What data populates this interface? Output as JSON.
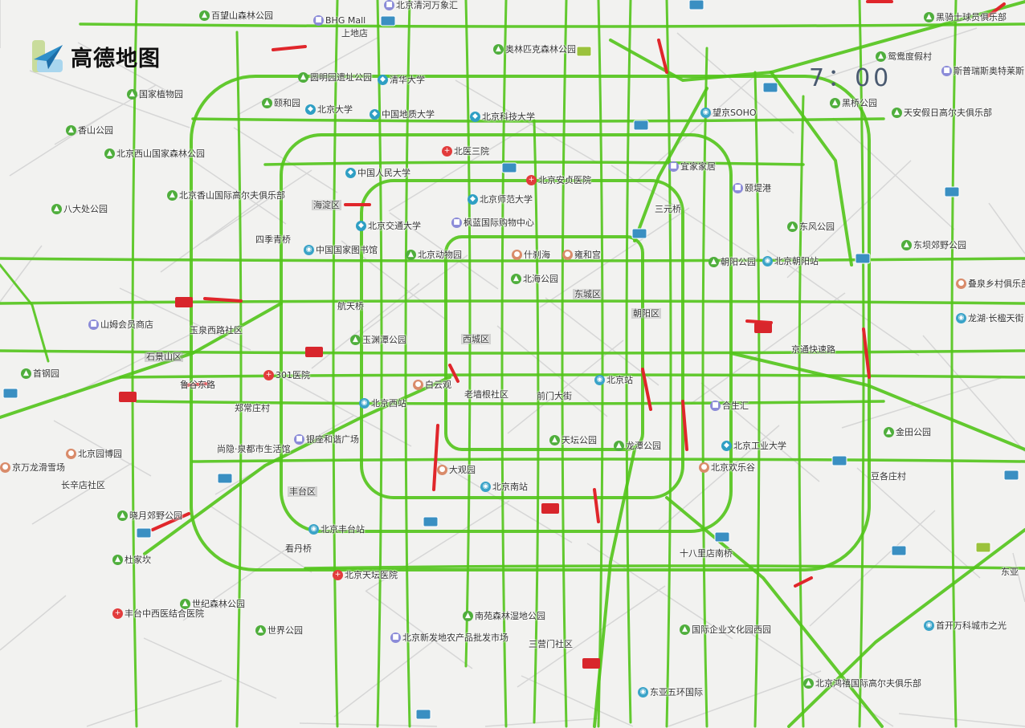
{
  "brand": {
    "name": "高德地图"
  },
  "time": "7：00",
  "colors": {
    "road_free": "#52c41a",
    "road_jam": "#e0262b",
    "background": "#f2f2f0",
    "park": "#4fae3c"
  },
  "labels": [
    {
      "text": "百望山森林公园",
      "icon": "park"
    },
    {
      "text": "BHG Mall",
      "icon": "shop"
    },
    {
      "text": "上地店",
      "icon": "none"
    },
    {
      "text": "北京清河万象汇",
      "icon": "shop"
    },
    {
      "text": "黑骑士球员俱乐部",
      "icon": "park"
    },
    {
      "text": "奥林匹克森林公园",
      "icon": "park"
    },
    {
      "text": "鸳鸯度假村",
      "icon": "park"
    },
    {
      "text": "斯普瑞斯奥特莱斯",
      "icon": "shop"
    },
    {
      "text": "圆明园遗址公园",
      "icon": "park"
    },
    {
      "text": "清华大学",
      "icon": "edu"
    },
    {
      "text": "国家植物园",
      "icon": "park"
    },
    {
      "text": "颐和园",
      "icon": "park"
    },
    {
      "text": "北京大学",
      "icon": "edu"
    },
    {
      "text": "中国地质大学",
      "icon": "edu"
    },
    {
      "text": "北京科技大学",
      "icon": "edu"
    },
    {
      "text": "望京SOHO",
      "icon": "station"
    },
    {
      "text": "黑桥公园",
      "icon": "park"
    },
    {
      "text": "天安假日高尔夫俱乐部",
      "icon": "park"
    },
    {
      "text": "香山公园",
      "icon": "park"
    },
    {
      "text": "北医三院",
      "icon": "hospital"
    },
    {
      "text": "宜家家居",
      "icon": "shop"
    },
    {
      "text": "北京西山国家森林公园",
      "icon": "park"
    },
    {
      "text": "中国人民大学",
      "icon": "edu"
    },
    {
      "text": "北京安贞医院",
      "icon": "hospital"
    },
    {
      "text": "颐堤港",
      "icon": "shop"
    },
    {
      "text": "海淀区",
      "icon": "district"
    },
    {
      "text": "北京香山国际高尔夫俱乐部",
      "icon": "park"
    },
    {
      "text": "北京师范大学",
      "icon": "edu"
    },
    {
      "text": "三元桥",
      "icon": "none"
    },
    {
      "text": "八大处公园",
      "icon": "park"
    },
    {
      "text": "北京交通大学",
      "icon": "edu"
    },
    {
      "text": "枫蓝国际购物中心",
      "icon": "shop"
    },
    {
      "text": "东风公园",
      "icon": "park"
    },
    {
      "text": "东坝郊野公园",
      "icon": "park"
    },
    {
      "text": "四季青桥",
      "icon": "none"
    },
    {
      "text": "中国国家图书馆",
      "icon": "station"
    },
    {
      "text": "北京动物园",
      "icon": "park"
    },
    {
      "text": "什刹海",
      "icon": "poi"
    },
    {
      "text": "雍和宫",
      "icon": "poi"
    },
    {
      "text": "朝阳公园",
      "icon": "park"
    },
    {
      "text": "北京朝阳站",
      "icon": "station"
    },
    {
      "text": "北海公园",
      "icon": "park"
    },
    {
      "text": "东城区",
      "icon": "district"
    },
    {
      "text": "朝阳区",
      "icon": "district"
    },
    {
      "text": "叠泉乡村俱乐部",
      "icon": "poi"
    },
    {
      "text": "航天桥",
      "icon": "none"
    },
    {
      "text": "山姆会员商店",
      "icon": "shop"
    },
    {
      "text": "玉泉西路社区",
      "icon": "none"
    },
    {
      "text": "玉渊潭公园",
      "icon": "park"
    },
    {
      "text": "西城区",
      "icon": "district"
    },
    {
      "text": "龙湖·长楹天街",
      "icon": "station"
    },
    {
      "text": "石景山区",
      "icon": "district"
    },
    {
      "text": "京通快速路",
      "icon": "none"
    },
    {
      "text": "首钢园",
      "icon": "park"
    },
    {
      "text": "301医院",
      "icon": "hospital"
    },
    {
      "text": "北京站",
      "icon": "station"
    },
    {
      "text": "鲁谷东路",
      "icon": "none"
    },
    {
      "text": "白云观",
      "icon": "poi"
    },
    {
      "text": "老墙根社区",
      "icon": "none"
    },
    {
      "text": "前门大街",
      "icon": "none"
    },
    {
      "text": "北京西站",
      "icon": "station"
    },
    {
      "text": "合生汇",
      "icon": "shop"
    },
    {
      "text": "郑常庄村",
      "icon": "none"
    },
    {
      "text": "天坛公园",
      "icon": "park"
    },
    {
      "text": "龙潭公园",
      "icon": "park"
    },
    {
      "text": "银座和谐广场",
      "icon": "shop"
    },
    {
      "text": "北京工业大学",
      "icon": "edu"
    },
    {
      "text": "金田公园",
      "icon": "park"
    },
    {
      "text": "北京园博园",
      "icon": "poi"
    },
    {
      "text": "尚隐·泉都市生活馆",
      "icon": "none"
    },
    {
      "text": "大观园",
      "icon": "poi"
    },
    {
      "text": "北京欢乐谷",
      "icon": "poi"
    },
    {
      "text": "北京南站",
      "icon": "station"
    },
    {
      "text": "京万龙滑雪场",
      "icon": "poi"
    },
    {
      "text": "长辛店社区",
      "icon": "none"
    },
    {
      "text": "丰台区",
      "icon": "district"
    },
    {
      "text": "豆各庄村",
      "icon": "none"
    },
    {
      "text": "晓月郊野公园",
      "icon": "park"
    },
    {
      "text": "北京丰台站",
      "icon": "station"
    },
    {
      "text": "杜家坎",
      "icon": "park"
    },
    {
      "text": "看丹桥",
      "icon": "none"
    },
    {
      "text": "十八里店南桥",
      "icon": "none"
    },
    {
      "text": "北京天坛医院",
      "icon": "hospital"
    },
    {
      "text": "东亚",
      "icon": "none"
    },
    {
      "text": "世纪森林公园",
      "icon": "park"
    },
    {
      "text": "丰台中西医结合医院",
      "icon": "hospital"
    },
    {
      "text": "南苑森林湿地公园",
      "icon": "park"
    },
    {
      "text": "首开万科城市之光",
      "icon": "station"
    },
    {
      "text": "世界公园",
      "icon": "park"
    },
    {
      "text": "北京新发地农产品批发市场",
      "icon": "shop"
    },
    {
      "text": "国际企业文化园西园",
      "icon": "park"
    },
    {
      "text": "三营门社区",
      "icon": "none"
    },
    {
      "text": "东亚五环国际",
      "icon": "station"
    },
    {
      "text": "北京鸿禧国际高尔夫俱乐部",
      "icon": "park"
    }
  ]
}
